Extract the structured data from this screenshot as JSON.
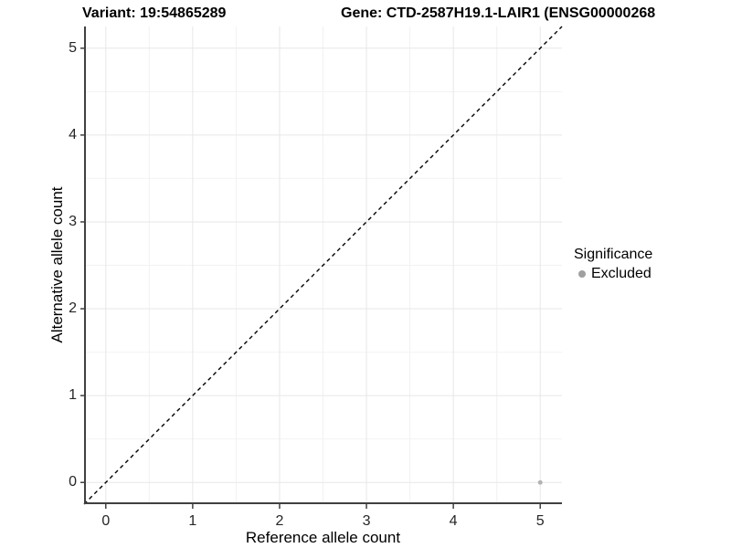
{
  "titles": {
    "variant": "Variant: 19:54865289",
    "gene": "Gene: CTD-2587H19.1-LAIR1 (ENSG00000268"
  },
  "chart_data": {
    "type": "scatter",
    "title_left": "Variant: 19:54865289",
    "title_right": "Gene: CTD-2587H19.1-LAIR1 (ENSG00000268",
    "xlabel": "Reference allele count",
    "ylabel": "Alternative allele count",
    "xlim": [
      -0.25,
      5.25
    ],
    "ylim": [
      -0.25,
      5.25
    ],
    "xticks": [
      0,
      1,
      2,
      3,
      4,
      5
    ],
    "yticks": [
      0,
      1,
      2,
      3,
      4,
      5
    ],
    "minor_ticks_x": [
      0.5,
      1.5,
      2.5,
      3.5,
      4.5
    ],
    "minor_ticks_y": [
      0.5,
      1.5,
      2.5,
      3.5,
      4.5
    ],
    "grid": "major+minor on white panel, no top/right border",
    "points": [
      {
        "x": 5,
        "y": 0,
        "significance": "Excluded"
      }
    ],
    "abline": {
      "slope": 1,
      "intercept": 0,
      "linetype": "dashed",
      "color": "#000000"
    },
    "legend": {
      "title": "Significance",
      "position": "right",
      "items": [
        {
          "label": "Excluded",
          "color": "#a0a0a0"
        }
      ]
    },
    "colors": {
      "point_excluded": "#b3b3b3",
      "grid_major": "#e7e7e7",
      "grid_minor": "#f2f2f2",
      "axis_line": "#404040",
      "tick_label": "#262626",
      "abline": "#000000"
    }
  }
}
